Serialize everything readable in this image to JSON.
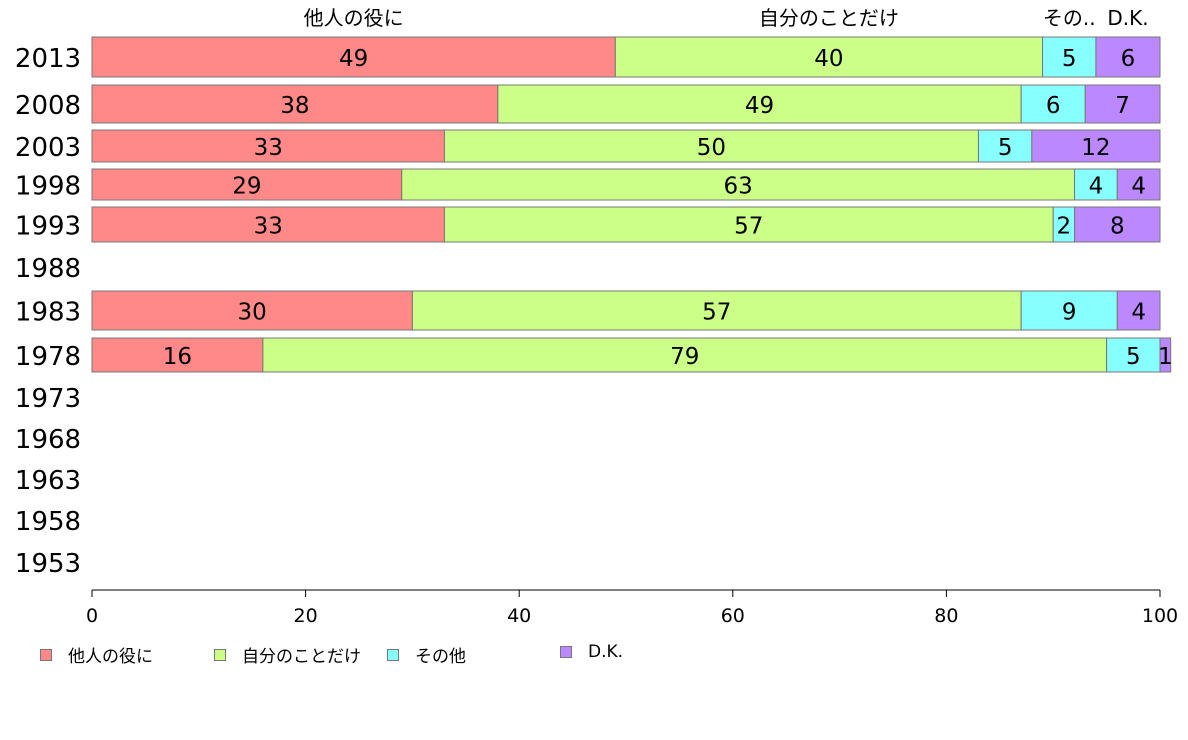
{
  "chart_data": {
    "type": "bar",
    "orientation": "horizontal",
    "stacked": true,
    "categories": [
      "2013",
      "2008",
      "2003",
      "1998",
      "1993",
      "1988",
      "1983",
      "1978",
      "1973",
      "1968",
      "1963",
      "1958",
      "1953"
    ],
    "series": [
      {
        "name": "他人の役に",
        "color": "#ff8888",
        "values": [
          49,
          38,
          33,
          29,
          33,
          null,
          30,
          16,
          null,
          null,
          null,
          null,
          null
        ]
      },
      {
        "name": "自分のことだけ",
        "color": "#ccff88",
        "values": [
          40,
          49,
          50,
          63,
          57,
          null,
          57,
          79,
          null,
          null,
          null,
          null,
          null
        ]
      },
      {
        "name": "その他",
        "color": "#88ffff",
        "values": [
          5,
          6,
          5,
          4,
          2,
          null,
          9,
          5,
          null,
          null,
          null,
          null,
          null
        ]
      },
      {
        "name": "D.K.",
        "color": "#bb88ff",
        "values": [
          6,
          7,
          12,
          4,
          8,
          null,
          4,
          1,
          null,
          null,
          null,
          null,
          null
        ]
      }
    ],
    "top_labels": [
      "他人の役に",
      "自分のことだけ",
      "その..",
      "D.K."
    ],
    "xlim": [
      0,
      100
    ],
    "xticks": [
      0,
      20,
      40,
      60,
      80,
      100
    ],
    "xlabel": "",
    "ylabel": "",
    "grid": false,
    "legend_position": "bottom"
  }
}
